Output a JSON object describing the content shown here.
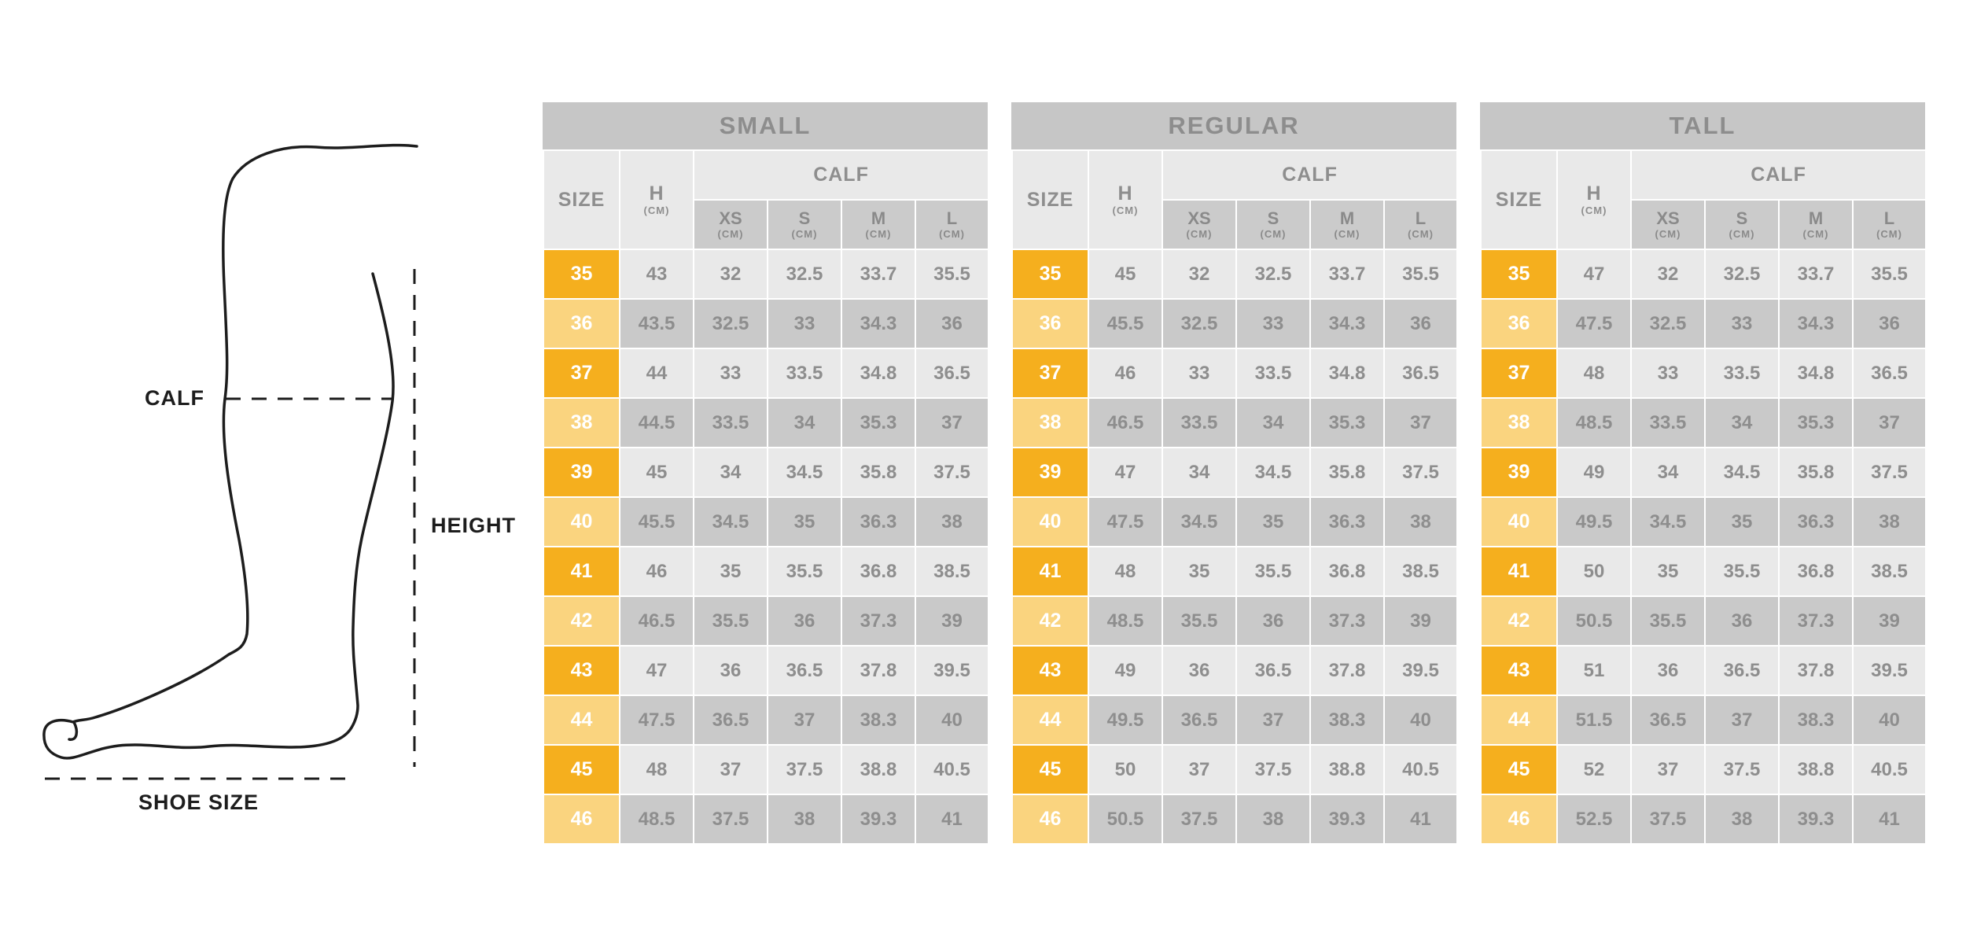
{
  "diagram": {
    "calf_label": "CALF",
    "height_label": "HEIGHT",
    "shoe_size_label": "SHOE SIZE"
  },
  "colors": {
    "accent_orange": "#f5af1e",
    "accent_orange_light": "#fad47f",
    "cell_light_gray": "#e9e9e9",
    "cell_dark_gray": "#c9c9c9",
    "title_band_gray": "#c6c6c6",
    "subheader_gray": "#cbcbcb",
    "table_text_gray": "#8e8e8e",
    "diagram_line_black": "#1d1d1d"
  },
  "tables": [
    {
      "title": "SMALL",
      "headers": {
        "size": "SIZE",
        "h": "H",
        "h_unit": "(CM)",
        "calf": "CALF",
        "sub": [
          {
            "label": "XS",
            "unit": "(CM)"
          },
          {
            "label": "S",
            "unit": "(CM)"
          },
          {
            "label": "M",
            "unit": "(CM)"
          },
          {
            "label": "L",
            "unit": "(CM)"
          }
        ]
      },
      "rows": [
        {
          "size": "35",
          "h": "43",
          "xs": "32",
          "s": "32.5",
          "m": "33.7",
          "l": "35.5"
        },
        {
          "size": "36",
          "h": "43.5",
          "xs": "32.5",
          "s": "33",
          "m": "34.3",
          "l": "36"
        },
        {
          "size": "37",
          "h": "44",
          "xs": "33",
          "s": "33.5",
          "m": "34.8",
          "l": "36.5"
        },
        {
          "size": "38",
          "h": "44.5",
          "xs": "33.5",
          "s": "34",
          "m": "35.3",
          "l": "37"
        },
        {
          "size": "39",
          "h": "45",
          "xs": "34",
          "s": "34.5",
          "m": "35.8",
          "l": "37.5"
        },
        {
          "size": "40",
          "h": "45.5",
          "xs": "34.5",
          "s": "35",
          "m": "36.3",
          "l": "38"
        },
        {
          "size": "41",
          "h": "46",
          "xs": "35",
          "s": "35.5",
          "m": "36.8",
          "l": "38.5"
        },
        {
          "size": "42",
          "h": "46.5",
          "xs": "35.5",
          "s": "36",
          "m": "37.3",
          "l": "39"
        },
        {
          "size": "43",
          "h": "47",
          "xs": "36",
          "s": "36.5",
          "m": "37.8",
          "l": "39.5"
        },
        {
          "size": "44",
          "h": "47.5",
          "xs": "36.5",
          "s": "37",
          "m": "38.3",
          "l": "40"
        },
        {
          "size": "45",
          "h": "48",
          "xs": "37",
          "s": "37.5",
          "m": "38.8",
          "l": "40.5"
        },
        {
          "size": "46",
          "h": "48.5",
          "xs": "37.5",
          "s": "38",
          "m": "39.3",
          "l": "41"
        }
      ]
    },
    {
      "title": "REGULAR",
      "headers": {
        "size": "SIZE",
        "h": "H",
        "h_unit": "(CM)",
        "calf": "CALF",
        "sub": [
          {
            "label": "XS",
            "unit": "(CM)"
          },
          {
            "label": "S",
            "unit": "(CM)"
          },
          {
            "label": "M",
            "unit": "(CM)"
          },
          {
            "label": "L",
            "unit": "(CM)"
          }
        ]
      },
      "rows": [
        {
          "size": "35",
          "h": "45",
          "xs": "32",
          "s": "32.5",
          "m": "33.7",
          "l": "35.5"
        },
        {
          "size": "36",
          "h": "45.5",
          "xs": "32.5",
          "s": "33",
          "m": "34.3",
          "l": "36"
        },
        {
          "size": "37",
          "h": "46",
          "xs": "33",
          "s": "33.5",
          "m": "34.8",
          "l": "36.5"
        },
        {
          "size": "38",
          "h": "46.5",
          "xs": "33.5",
          "s": "34",
          "m": "35.3",
          "l": "37"
        },
        {
          "size": "39",
          "h": "47",
          "xs": "34",
          "s": "34.5",
          "m": "35.8",
          "l": "37.5"
        },
        {
          "size": "40",
          "h": "47.5",
          "xs": "34.5",
          "s": "35",
          "m": "36.3",
          "l": "38"
        },
        {
          "size": "41",
          "h": "48",
          "xs": "35",
          "s": "35.5",
          "m": "36.8",
          "l": "38.5"
        },
        {
          "size": "42",
          "h": "48.5",
          "xs": "35.5",
          "s": "36",
          "m": "37.3",
          "l": "39"
        },
        {
          "size": "43",
          "h": "49",
          "xs": "36",
          "s": "36.5",
          "m": "37.8",
          "l": "39.5"
        },
        {
          "size": "44",
          "h": "49.5",
          "xs": "36.5",
          "s": "37",
          "m": "38.3",
          "l": "40"
        },
        {
          "size": "45",
          "h": "50",
          "xs": "37",
          "s": "37.5",
          "m": "38.8",
          "l": "40.5"
        },
        {
          "size": "46",
          "h": "50.5",
          "xs": "37.5",
          "s": "38",
          "m": "39.3",
          "l": "41"
        }
      ]
    },
    {
      "title": "TALL",
      "headers": {
        "size": "SIZE",
        "h": "H",
        "h_unit": "(CM)",
        "calf": "CALF",
        "sub": [
          {
            "label": "XS",
            "unit": "(CM)"
          },
          {
            "label": "S",
            "unit": "(CM)"
          },
          {
            "label": "M",
            "unit": "(CM)"
          },
          {
            "label": "L",
            "unit": "(CM)"
          }
        ]
      },
      "rows": [
        {
          "size": "35",
          "h": "47",
          "xs": "32",
          "s": "32.5",
          "m": "33.7",
          "l": "35.5"
        },
        {
          "size": "36",
          "h": "47.5",
          "xs": "32.5",
          "s": "33",
          "m": "34.3",
          "l": "36"
        },
        {
          "size": "37",
          "h": "48",
          "xs": "33",
          "s": "33.5",
          "m": "34.8",
          "l": "36.5"
        },
        {
          "size": "38",
          "h": "48.5",
          "xs": "33.5",
          "s": "34",
          "m": "35.3",
          "l": "37"
        },
        {
          "size": "39",
          "h": "49",
          "xs": "34",
          "s": "34.5",
          "m": "35.8",
          "l": "37.5"
        },
        {
          "size": "40",
          "h": "49.5",
          "xs": "34.5",
          "s": "35",
          "m": "36.3",
          "l": "38"
        },
        {
          "size": "41",
          "h": "50",
          "xs": "35",
          "s": "35.5",
          "m": "36.8",
          "l": "38.5"
        },
        {
          "size": "42",
          "h": "50.5",
          "xs": "35.5",
          "s": "36",
          "m": "37.3",
          "l": "39"
        },
        {
          "size": "43",
          "h": "51",
          "xs": "36",
          "s": "36.5",
          "m": "37.8",
          "l": "39.5"
        },
        {
          "size": "44",
          "h": "51.5",
          "xs": "36.5",
          "s": "37",
          "m": "38.3",
          "l": "40"
        },
        {
          "size": "45",
          "h": "52",
          "xs": "37",
          "s": "37.5",
          "m": "38.8",
          "l": "40.5"
        },
        {
          "size": "46",
          "h": "52.5",
          "xs": "37.5",
          "s": "38",
          "m": "39.3",
          "l": "41"
        }
      ]
    }
  ]
}
